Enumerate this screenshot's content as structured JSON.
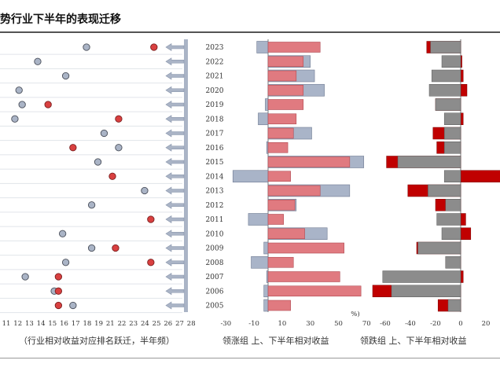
{
  "title": "势行业下半年的表现迁移",
  "captions": {
    "left": "（行业相对收益对应排名跃迁，半年频）",
    "middle": "领涨组 上、下半年相对收益",
    "right": "领跌组 上、下半年相对收益"
  },
  "unit_mark": "%)",
  "colors": {
    "first_half": "#a9b4c8",
    "second_half_up": "#e07a80",
    "second_half_down": "#c00000",
    "grey_bar": "#8c8c8c",
    "dot_red": "#d94040",
    "dot_grey": "#aab4c6",
    "arrow": "#aab4c6"
  },
  "chart_data": [
    {
      "type": "scatter",
      "title": "",
      "xlabel": "",
      "categories": [
        "2023",
        "2022",
        "2021",
        "2020",
        "2019",
        "2018",
        "2017",
        "2016",
        "2015",
        "2014",
        "2013",
        "2012",
        "2011",
        "2010",
        "2009",
        "2008",
        "2007",
        "2006",
        "2005"
      ],
      "xlim": [
        9,
        28
      ],
      "xticks": [
        "11",
        "12",
        "13",
        "14",
        "15",
        "16",
        "17",
        "18",
        "19",
        "21",
        "22",
        "23",
        "24",
        "25",
        "26",
        "27",
        "28"
      ],
      "series": [
        {
          "values": [
            18.5,
            13.8,
            16.5,
            12.0,
            12.3,
            11.6,
            20.2,
            21.6,
            19.6,
            null,
            24.1,
            19.0,
            9.3,
            16.2,
            19.0,
            16.5,
            12.6,
            15.4,
            17.2
          ]
        },
        {
          "values": [
            25.0,
            null,
            null,
            null,
            14.8,
            21.6,
            null,
            17.2,
            null,
            21.0,
            null,
            null,
            24.7,
            null,
            21.3,
            24.7,
            15.8,
            15.8,
            15.8
          ]
        }
      ]
    },
    {
      "type": "bar",
      "title": "",
      "xlabel": "",
      "categories": [
        "2023",
        "2022",
        "2021",
        "2020",
        "2019",
        "2018",
        "2017",
        "2016",
        "2015",
        "2014",
        "2013",
        "2012",
        "2011",
        "2010",
        "2009",
        "2008",
        "2007",
        "2006",
        "2005"
      ],
      "xlim": [
        -30,
        70
      ],
      "xticks": [
        -30,
        -10,
        10,
        30,
        50,
        70
      ],
      "series": [
        {
          "values": [
            -8,
            30,
            33,
            40,
            -2,
            -7,
            31,
            -1,
            68,
            -25,
            58,
            20,
            -14,
            42,
            -3,
            -12,
            -1,
            -3,
            -3
          ]
        },
        {
          "values": [
            37,
            25,
            20,
            25,
            25,
            20,
            18,
            14,
            58,
            16,
            37,
            19,
            11,
            26,
            54,
            18,
            51,
            66,
            16
          ]
        }
      ]
    },
    {
      "type": "bar",
      "title": "",
      "xlabel": "",
      "categories": [
        "2023",
        "2022",
        "2021",
        "2020",
        "2019",
        "2018",
        "2017",
        "2016",
        "2015",
        "2014",
        "2013",
        "2012",
        "2011",
        "2010",
        "2009",
        "2008",
        "2007",
        "2006",
        "2005"
      ],
      "xlim": [
        -70,
        32
      ],
      "xticks": [
        -60,
        -40,
        -20,
        0,
        20
      ],
      "series": [
        {
          "values": [
            -24,
            -15,
            -23,
            -25,
            -20,
            -13,
            -13,
            -13,
            -50,
            -13,
            -26,
            -12,
            -19,
            -15,
            -34,
            -12,
            -62,
            -55,
            -10
          ]
        },
        {
          "values": [
            -27,
            1,
            2,
            5,
            -20,
            2,
            -22,
            -19,
            -59,
            32,
            -42,
            -20,
            4,
            8,
            -35,
            -12,
            2,
            -70,
            -18
          ]
        }
      ]
    }
  ]
}
